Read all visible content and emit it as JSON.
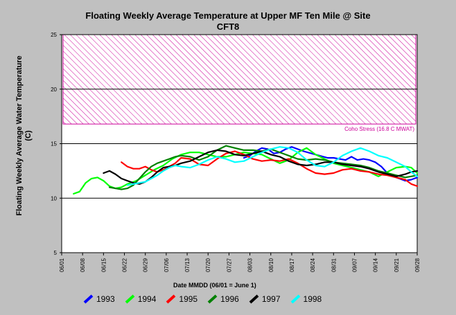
{
  "header": {
    "title_line1": "Floating Weekly Average Temperature at Upper MF Ten Mile @ Site",
    "title_line2": "CFT8"
  },
  "chart_data": {
    "type": "line",
    "title": "Floating Weekly Average Temperature at Upper MF Ten Mile @ Site CFT8",
    "xlabel": "Date MMDD (06/01 = June 1)",
    "ylabel": "Floating Weekly Average Water Temperature (C)",
    "x_ticks": [
      "06/01",
      "06/08",
      "06/15",
      "06/22",
      "06/29",
      "07/06",
      "07/13",
      "07/20",
      "07/27",
      "08/03",
      "08/10",
      "08/17",
      "08/24",
      "08/31",
      "09/07",
      "09/14",
      "09/21",
      "09/28"
    ],
    "xlim_days": [
      0,
      119
    ],
    "y_ticks": [
      5,
      10,
      15,
      20,
      25
    ],
    "ylim": [
      5,
      25
    ],
    "grid_y": [
      10,
      15,
      20,
      25
    ],
    "threshold": {
      "label": "Coho Stress (16.8 C MWAT)",
      "from": 16.8,
      "to": 25,
      "color": "#cc0099"
    },
    "series": [
      {
        "name": "1993",
        "color": "#0000ff",
        "x": [
          61,
          63,
          65,
          67,
          69,
          71,
          73,
          75,
          77,
          81,
          85,
          89,
          91,
          93,
          95,
          97,
          99,
          101,
          103,
          105,
          107,
          109,
          111,
          113,
          115,
          117,
          119
        ],
        "y": [
          13.7,
          13.9,
          14.3,
          14.6,
          14.5,
          14.1,
          14.2,
          14.5,
          14.7,
          14.3,
          14.0,
          13.7,
          13.7,
          13.6,
          13.5,
          13.8,
          13.5,
          13.6,
          13.5,
          13.3,
          12.9,
          12.3,
          12.0,
          11.8,
          11.6,
          11.7,
          11.9
        ]
      },
      {
        "name": "1994",
        "color": "#00ff00",
        "x": [
          4,
          6,
          8,
          10,
          12,
          14,
          16,
          18,
          20,
          22,
          25,
          28,
          31,
          34,
          37,
          40,
          43,
          46,
          49,
          52,
          55,
          58,
          61,
          64,
          67,
          70,
          73,
          76,
          79,
          82,
          85,
          88,
          91,
          94,
          97,
          100,
          103,
          106,
          109,
          112,
          115,
          117,
          119
        ],
        "y": [
          10.4,
          10.6,
          11.4,
          11.8,
          11.9,
          11.6,
          11.1,
          10.9,
          11.0,
          11.3,
          11.6,
          12.1,
          12.6,
          13.0,
          13.6,
          14.0,
          14.2,
          14.2,
          14.0,
          13.8,
          13.8,
          14.0,
          14.2,
          14.1,
          14.0,
          13.6,
          13.2,
          13.5,
          14.2,
          14.6,
          14.0,
          13.6,
          13.2,
          13.0,
          12.8,
          12.6,
          12.4,
          12.0,
          12.4,
          12.8,
          12.9,
          12.8,
          12.3
        ]
      },
      {
        "name": "1995",
        "color": "#ff0000",
        "x": [
          20,
          22,
          24,
          26,
          28,
          30,
          32,
          34,
          36,
          38,
          40,
          43,
          46,
          49,
          52,
          55,
          58,
          61,
          64,
          67,
          70,
          73,
          76,
          79,
          82,
          85,
          88,
          91,
          94,
          97,
          100,
          103,
          106,
          109,
          112,
          115,
          117,
          119
        ],
        "y": [
          13.3,
          12.9,
          12.7,
          12.7,
          12.9,
          12.6,
          12.4,
          12.6,
          12.9,
          13.2,
          13.7,
          13.6,
          13.1,
          13.0,
          13.6,
          14.1,
          14.3,
          14.0,
          13.6,
          13.4,
          13.5,
          13.4,
          13.6,
          13.2,
          12.7,
          12.3,
          12.2,
          12.3,
          12.6,
          12.7,
          12.5,
          12.4,
          12.2,
          12.1,
          11.9,
          11.7,
          11.3,
          11.1
        ]
      },
      {
        "name": "1996",
        "color": "#008000",
        "x": [
          16,
          18,
          20,
          22,
          24,
          26,
          28,
          30,
          32,
          34,
          36,
          38,
          40,
          43,
          46,
          49,
          52,
          55,
          58,
          61,
          64,
          67,
          70,
          73,
          76,
          79,
          82,
          85,
          88,
          91,
          94,
          97,
          100,
          103,
          106,
          109,
          112,
          115,
          117,
          119
        ],
        "y": [
          11.0,
          10.9,
          10.8,
          10.9,
          11.2,
          11.8,
          12.4,
          12.9,
          13.2,
          13.4,
          13.6,
          13.8,
          13.9,
          13.8,
          13.5,
          13.8,
          14.4,
          14.8,
          14.6,
          14.4,
          14.4,
          14.3,
          14.5,
          14.2,
          13.9,
          13.6,
          13.5,
          13.6,
          13.5,
          13.3,
          13.2,
          13.1,
          13.0,
          12.8,
          12.5,
          12.3,
          12.1,
          11.9,
          12.0,
          12.1
        ]
      },
      {
        "name": "1997",
        "color": "#000000",
        "x": [
          14,
          16,
          18,
          20,
          22,
          24,
          26,
          28,
          30,
          32,
          34,
          36,
          38,
          40,
          43,
          46,
          49,
          52,
          55,
          58,
          61,
          64,
          67,
          70,
          73,
          76,
          79,
          82,
          85,
          88,
          91,
          94,
          97,
          100,
          103,
          106,
          109,
          112,
          115,
          117,
          119
        ],
        "y": [
          12.3,
          12.5,
          12.2,
          11.8,
          11.6,
          11.4,
          11.3,
          11.5,
          11.9,
          12.4,
          12.8,
          12.9,
          13.0,
          13.2,
          13.4,
          13.8,
          14.2,
          14.4,
          14.3,
          14.0,
          13.9,
          14.1,
          14.3,
          14.0,
          13.8,
          13.4,
          13.1,
          13.0,
          13.1,
          13.3,
          13.3,
          13.1,
          13.0,
          12.9,
          12.7,
          12.4,
          12.2,
          12.0,
          12.2,
          12.4,
          12.5
        ]
      },
      {
        "name": "1998",
        "color": "#00ffff",
        "x": [
          22,
          24,
          26,
          28,
          30,
          32,
          34,
          36,
          38,
          40,
          43,
          46,
          49,
          52,
          55,
          58,
          61,
          64,
          67,
          70,
          73,
          76,
          79,
          82,
          85,
          88,
          91,
          94,
          97,
          100,
          103,
          106,
          109,
          112,
          115,
          117,
          119
        ],
        "y": [
          11.2,
          11.3,
          11.4,
          11.5,
          11.8,
          12.1,
          12.5,
          12.8,
          13.0,
          12.9,
          12.8,
          13.1,
          13.5,
          13.8,
          13.6,
          13.3,
          13.4,
          13.8,
          14.2,
          14.5,
          14.7,
          14.6,
          14.2,
          13.5,
          13.0,
          12.9,
          13.3,
          13.9,
          14.3,
          14.6,
          14.3,
          13.9,
          13.7,
          13.3,
          12.9,
          12.4,
          12.0
        ]
      }
    ],
    "legend_position": "bottom"
  }
}
